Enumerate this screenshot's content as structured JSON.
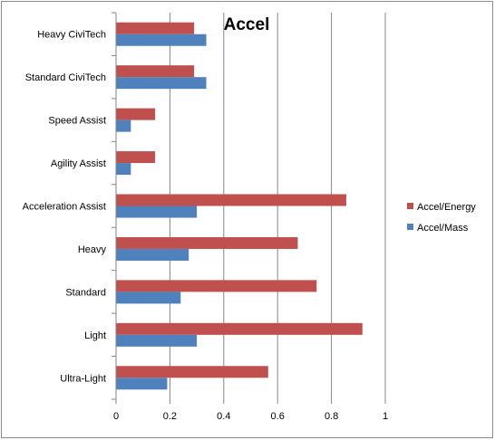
{
  "chart_data": {
    "type": "bar",
    "orientation": "horizontal",
    "title": "Accel",
    "categories": [
      "Heavy CiviTech",
      "Standard CiviTech",
      "Speed Assist",
      "Agility Assist",
      "Acceleration Assist",
      "Heavy",
      "Standard",
      "Light",
      "Ultra-Light"
    ],
    "series": [
      {
        "name": "Accel/Energy",
        "color": "#c0504d",
        "values": [
          0.29,
          0.29,
          0.145,
          0.145,
          0.855,
          0.675,
          0.745,
          0.915,
          0.565
        ]
      },
      {
        "name": "Accel/Mass",
        "color": "#4f81bd",
        "values": [
          0.335,
          0.335,
          0.055,
          0.055,
          0.3,
          0.27,
          0.24,
          0.3,
          0.19
        ]
      }
    ],
    "xlim": [
      0,
      1
    ],
    "x_ticks": [
      "0",
      "0.2",
      "0.4",
      "0.6",
      "0.8",
      "1"
    ],
    "grid": true,
    "legend_position": "right"
  }
}
